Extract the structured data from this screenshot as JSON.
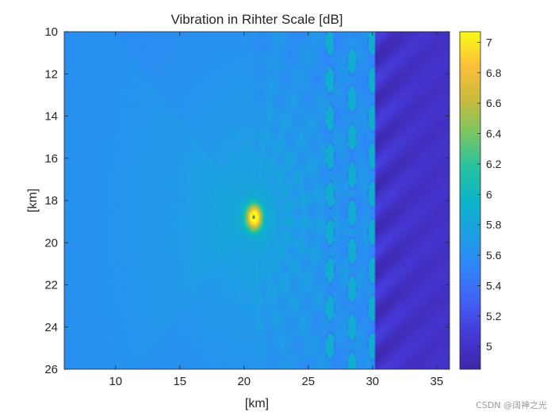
{
  "chart_data": {
    "type": "heatmap",
    "title": "Vibration in Rihter Scale [dB]",
    "xlabel": "[km]",
    "ylabel": "[km]",
    "xlim": [
      6,
      36
    ],
    "ylim": [
      10,
      26
    ],
    "y_reversed": true,
    "x_ticks": [
      10,
      15,
      20,
      25,
      30,
      35
    ],
    "y_ticks": [
      10,
      12,
      14,
      16,
      18,
      20,
      22,
      24,
      26
    ],
    "colormap": "parula",
    "colorbar": {
      "limits": [
        4.85,
        7.07
      ],
      "ticks": [
        5,
        5.2,
        5.4,
        5.6,
        5.8,
        6,
        6.2,
        6.4,
        6.6,
        6.8,
        7
      ]
    },
    "field": {
      "source_peak": {
        "x": 20.8,
        "y": 18.8,
        "value": 7.07
      },
      "background_value": 5.55,
      "far_right_value": 5.0,
      "obstacle_columns_x": [
        26.7,
        28.4,
        30.0
      ],
      "obstacle_row_y": [
        10.5,
        12.3,
        14.1,
        15.9,
        17.7,
        19.5,
        21.3,
        23.1,
        24.9
      ]
    },
    "grid": false
  },
  "watermark": "CSDN @阔神之光"
}
